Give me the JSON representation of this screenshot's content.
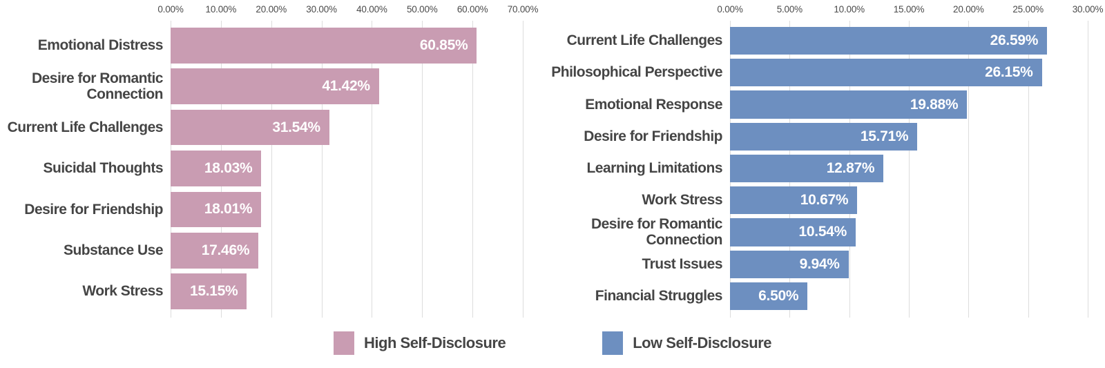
{
  "legend": {
    "items": [
      {
        "label": "High Self-Disclosure",
        "color": "#c99cb2"
      },
      {
        "label": "Low Self-Disclosure",
        "color": "#6d8fc0"
      }
    ]
  },
  "chart_data": [
    {
      "type": "bar",
      "orientation": "horizontal",
      "series_name": "High Self-Disclosure",
      "bar_color": "#c99cb2",
      "value_text_color": "#ffffff",
      "xlim": [
        0,
        70
      ],
      "tick_values": [
        0,
        10,
        20,
        30,
        40,
        50,
        60,
        70
      ],
      "tick_labels": [
        "0.00%",
        "10.00%",
        "20.00%",
        "30.00%",
        "40.00%",
        "50.00%",
        "60.00%",
        "70.00%"
      ],
      "grid": true,
      "categories": [
        "Emotional Distress",
        "Desire for Romantic Connection",
        "Current Life Challenges",
        "Suicidal Thoughts",
        "Desire for Friendship",
        "Substance Use",
        "Work Stress"
      ],
      "values": [
        60.85,
        41.42,
        31.54,
        18.03,
        18.01,
        17.46,
        15.15
      ],
      "value_labels": [
        "60.85%",
        "41.42%",
        "31.54%",
        "18.03%",
        "18.01%",
        "17.46%",
        "15.15%"
      ]
    },
    {
      "type": "bar",
      "orientation": "horizontal",
      "series_name": "Low Self-Disclosure",
      "bar_color": "#6d8fc0",
      "value_text_color": "#ffffff",
      "xlim": [
        0,
        30
      ],
      "tick_values": [
        0,
        5,
        10,
        15,
        20,
        25,
        30
      ],
      "tick_labels": [
        "0.00%",
        "5.00%",
        "10.00%",
        "15.00%",
        "20.00%",
        "25.00%",
        "30.00%"
      ],
      "grid": true,
      "categories": [
        "Current Life Challenges",
        "Philosophical Perspective",
        "Emotional Response",
        "Desire for Friendship",
        "Learning Limitations",
        "Work Stress",
        "Desire for Romantic Connection",
        "Trust Issues",
        "Financial Struggles"
      ],
      "values": [
        26.59,
        26.15,
        19.88,
        15.71,
        12.87,
        10.67,
        10.54,
        9.94,
        6.5
      ],
      "value_labels": [
        "26.59%",
        "26.15%",
        "19.88%",
        "15.71%",
        "12.87%",
        "10.67%",
        "10.54%",
        "9.94%",
        "6.50%"
      ]
    }
  ]
}
